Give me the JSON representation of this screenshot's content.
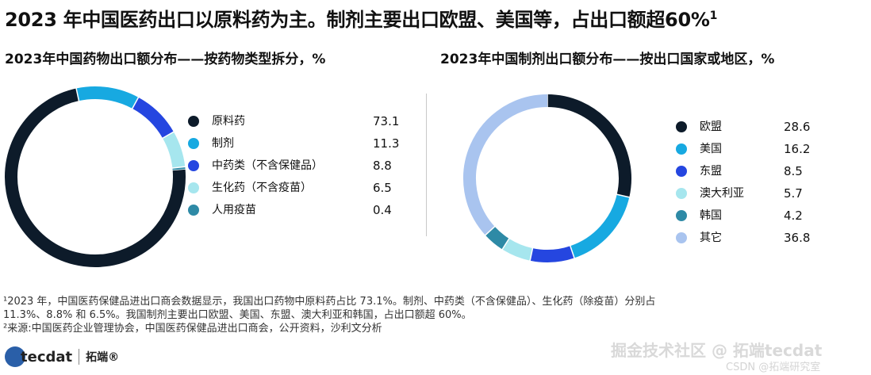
{
  "title": "2023 年中国医药出口以原料药为主。制剂主要出口欧盟、美国等，占出口额超60%",
  "title_sup": "1",
  "footnotes": [
    "¹2023 年，中国医药保健品进出口商会数据显示，我国出口药物中原料药占比 73.1%。制剂、中药类（不含保健品）、生化药（除疫苗）分别占",
    "11.3%、8.8% 和 6.5%。我国制剂主要出口欧盟、美国、东盟、澳大利亚和韩国，占出口额超 60%。",
    "²来源:中国医药企业管理协会，中国医药保健品进出口商会，公开资料，沙利文分析"
  ],
  "logo": {
    "text": "tecdat",
    "cn": "拓端®"
  },
  "watermark": "掘金技术社区 @ 拓端tecdat",
  "watermark2": "CSDN @拓端研究室",
  "chart_data": [
    {
      "type": "pie",
      "title": "2023年中国药物出口额分布——按药物类型拆分，%",
      "categories": [
        "原料药",
        "制剂",
        "中药类（不含保健品）",
        "生化药（不含疫苗）",
        "人用疫苗"
      ],
      "values": [
        73.1,
        11.3,
        8.8,
        6.5,
        0.4
      ],
      "value_labels": [
        "73.1",
        "11.3",
        "8.8",
        "6.5",
        "0.4"
      ],
      "colors": [
        "#0d1b2a",
        "#17a9e1",
        "#2546e0",
        "#a6e6ee",
        "#2e8aa6"
      ],
      "legend": "right"
    },
    {
      "type": "pie",
      "title": "2023年中国制剂出口额分布——按出口国家或地区，%",
      "categories": [
        "欧盟",
        "美国",
        "东盟",
        "澳大利亚",
        "韩国",
        "其它"
      ],
      "values": [
        28.6,
        16.2,
        8.5,
        5.7,
        4.2,
        36.8
      ],
      "value_labels": [
        "28.6",
        "16.2",
        "8.5",
        "5.7",
        "4.2",
        "36.8"
      ],
      "colors": [
        "#0d1b2a",
        "#17a9e1",
        "#2546e0",
        "#a6e6ee",
        "#2e8aa6",
        "#a9c4ef"
      ],
      "legend": "right"
    }
  ]
}
